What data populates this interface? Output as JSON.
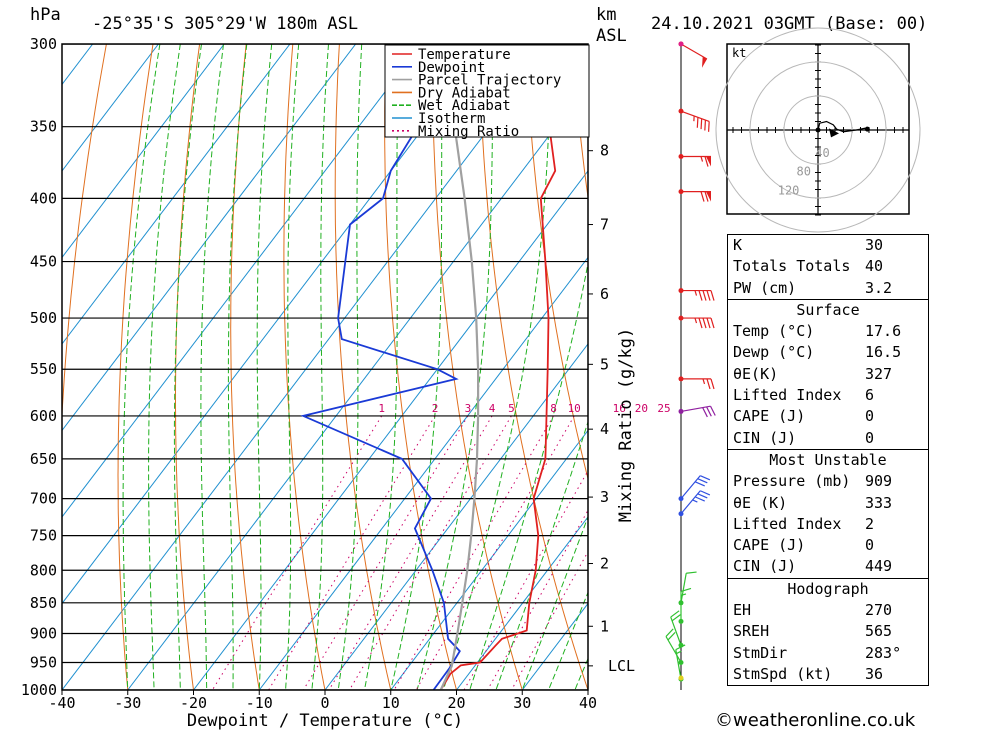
{
  "header": {
    "pressure_unit": "hPa",
    "location": "-25°35'S 305°29'W 180m ASL",
    "km_label": "km",
    "asl_label": "ASL",
    "datetime": "24.10.2021 03GMT (Base: 00)",
    "x_axis_label": "Dewpoint / Temperature (°C)",
    "mixing_axis_label": "Mixing Ratio (g/kg)",
    "lcl_label": "LCL",
    "hodograph_unit": "kt",
    "footer": "©weatheronline.co.uk"
  },
  "legend": [
    {
      "label": "Temperature",
      "color": "#e02020"
    },
    {
      "label": "Dewpoint",
      "color": "#1a3ad6"
    },
    {
      "label": "Parcel Trajectory",
      "color": "#a0a0a0"
    },
    {
      "label": "Dry Adiabat",
      "color": "#e07020"
    },
    {
      "label": "Wet Adiabat",
      "color": "#20b020"
    },
    {
      "label": "Isotherm",
      "color": "#2090d0"
    },
    {
      "label": "Mixing Ratio",
      "color": "#cc0066"
    }
  ],
  "chart_data": {
    "type": "line",
    "title": "-25°35'S 305°29'W 180m ASL",
    "xlabel": "Dewpoint / Temperature (°C)",
    "ylabel": "hPa",
    "x_ticks": [
      -40,
      -30,
      -20,
      -10,
      0,
      10,
      20,
      30,
      40
    ],
    "xlim": [
      -40,
      40
    ],
    "pressure_levels": [
      300,
      350,
      400,
      450,
      500,
      550,
      600,
      650,
      700,
      750,
      800,
      850,
      900,
      950,
      1000
    ],
    "ylim": [
      1000,
      300
    ],
    "km_ticks": [
      {
        "label": "8",
        "pressure": 366
      },
      {
        "label": "7",
        "pressure": 420
      },
      {
        "label": "6",
        "pressure": 478
      },
      {
        "label": "5",
        "pressure": 545
      },
      {
        "label": "4",
        "pressure": 615
      },
      {
        "label": "3",
        "pressure": 698
      },
      {
        "label": "2",
        "pressure": 790
      },
      {
        "label": "1",
        "pressure": 888
      },
      {
        "label": "LCL",
        "pressure": 956
      }
    ],
    "mixing_ratio_labels": [
      "1",
      "2",
      "3",
      "4",
      "5",
      "8",
      "10",
      "16",
      "20",
      "25"
    ],
    "mixing_ratio_values": [
      1,
      2,
      3,
      4,
      5,
      8,
      10,
      16,
      20,
      25
    ],
    "series": [
      {
        "name": "Temperature",
        "points": [
          {
            "p": 1000,
            "t": 17.6
          },
          {
            "p": 970,
            "t": 17.2
          },
          {
            "p": 955,
            "t": 17.8
          },
          {
            "p": 950,
            "t": 20.4
          },
          {
            "p": 920,
            "t": 20.8
          },
          {
            "p": 909,
            "t": 21.0
          },
          {
            "p": 895,
            "t": 23.8
          },
          {
            "p": 850,
            "t": 21.0
          },
          {
            "p": 800,
            "t": 18.2
          },
          {
            "p": 750,
            "t": 14.6
          },
          {
            "p": 700,
            "t": 9.6
          },
          {
            "p": 650,
            "t": 6.8
          },
          {
            "p": 600,
            "t": 2.0
          },
          {
            "p": 550,
            "t": -3.2
          },
          {
            "p": 500,
            "t": -9.0
          },
          {
            "p": 450,
            "t": -16.0
          },
          {
            "p": 400,
            "t": -24.0
          },
          {
            "p": 380,
            "t": -25.0
          },
          {
            "p": 350,
            "t": -31.0
          },
          {
            "p": 300,
            "t": -40.0
          }
        ]
      },
      {
        "name": "Dewpoint",
        "points": [
          {
            "p": 1000,
            "t": 16.5
          },
          {
            "p": 960,
            "t": 16.4
          },
          {
            "p": 930,
            "t": 16.0
          },
          {
            "p": 909,
            "t": 12.8
          },
          {
            "p": 850,
            "t": 8.0
          },
          {
            "p": 800,
            "t": 2.5
          },
          {
            "p": 740,
            "t": -5.0
          },
          {
            "p": 700,
            "t": -6.0
          },
          {
            "p": 650,
            "t": -15.0
          },
          {
            "p": 600,
            "t": -35.0
          },
          {
            "p": 560,
            "t": -16.0
          },
          {
            "p": 550,
            "t": -20.0
          },
          {
            "p": 520,
            "t": -38.0
          },
          {
            "p": 500,
            "t": -41.0
          },
          {
            "p": 420,
            "t": -50.0
          },
          {
            "p": 400,
            "t": -48.0
          },
          {
            "p": 380,
            "t": -50.0
          },
          {
            "p": 350,
            "t": -51.0
          },
          {
            "p": 300,
            "t": -57.0
          }
        ]
      },
      {
        "name": "Parcel Trajectory",
        "points": [
          {
            "p": 1000,
            "t": 17.6
          },
          {
            "p": 956,
            "t": 16.5
          },
          {
            "p": 900,
            "t": 13.6
          },
          {
            "p": 850,
            "t": 10.8
          },
          {
            "p": 800,
            "t": 7.8
          },
          {
            "p": 750,
            "t": 4.4
          },
          {
            "p": 700,
            "t": 0.6
          },
          {
            "p": 650,
            "t": -3.6
          },
          {
            "p": 600,
            "t": -8.4
          },
          {
            "p": 550,
            "t": -13.8
          },
          {
            "p": 500,
            "t": -20.0
          },
          {
            "p": 450,
            "t": -27.2
          },
          {
            "p": 400,
            "t": -35.6
          },
          {
            "p": 350,
            "t": -45.4
          },
          {
            "p": 300,
            "t": -57.0
          }
        ]
      }
    ],
    "wind_barbs": [
      {
        "p": 300,
        "speed_kt": 50,
        "dir_deg": 300
      },
      {
        "p": 340,
        "speed_kt": 45,
        "dir_deg": 290
      },
      {
        "p": 370,
        "speed_kt": 65,
        "dir_deg": 270
      },
      {
        "p": 395,
        "speed_kt": 70,
        "dir_deg": 270
      },
      {
        "p": 475,
        "speed_kt": 45,
        "dir_deg": 270
      },
      {
        "p": 500,
        "speed_kt": 45,
        "dir_deg": 270
      },
      {
        "p": 560,
        "speed_kt": 25,
        "dir_deg": 270
      },
      {
        "p": 595,
        "speed_kt": 30,
        "dir_deg": 260
      },
      {
        "p": 700,
        "speed_kt": 30,
        "dir_deg": 220
      },
      {
        "p": 720,
        "speed_kt": 35,
        "dir_deg": 220
      },
      {
        "p": 850,
        "speed_kt": 10,
        "dir_deg": 190
      },
      {
        "p": 880,
        "speed_kt": 15,
        "dir_deg": 180
      },
      {
        "p": 920,
        "speed_kt": 20,
        "dir_deg": 160
      },
      {
        "p": 950,
        "speed_kt": 20,
        "dir_deg": 150
      },
      {
        "p": 980,
        "speed_kt": 15,
        "dir_deg": 170
      }
    ],
    "hodograph": {
      "rings_kt": [
        40,
        80,
        120
      ],
      "ring_labels": [
        "40",
        "80",
        "120"
      ],
      "trace_kt": [
        {
          "u": 0,
          "v": 0
        },
        {
          "u": 2,
          "v": 8
        },
        {
          "u": 10,
          "v": 10
        },
        {
          "u": 18,
          "v": 6
        },
        {
          "u": 22,
          "v": 1
        },
        {
          "u": 30,
          "v": -2
        },
        {
          "u": 45,
          "v": 0
        },
        {
          "u": 55,
          "v": 2
        },
        {
          "u": 58,
          "v": 1
        }
      ],
      "storm_motion_kt": {
        "u": 20,
        "v": -4
      }
    }
  },
  "indices": {
    "k": {
      "label": "K",
      "value": "30"
    },
    "totals": {
      "label": "Totals Totals",
      "value": "40"
    },
    "pw": {
      "label": "PW (cm)",
      "value": "3.2"
    }
  },
  "surface": {
    "title": "Surface",
    "temp": {
      "label": "Temp (°C)",
      "value": "17.6"
    },
    "dewp": {
      "label": "Dewp (°C)",
      "value": "16.5"
    },
    "theta_e": {
      "label": "θE(K)",
      "value": "327"
    },
    "li": {
      "label": "Lifted Index",
      "value": "6"
    },
    "cape": {
      "label": "CAPE (J)",
      "value": "0"
    },
    "cin": {
      "label": "CIN (J)",
      "value": "0"
    }
  },
  "most_unstable": {
    "title": "Most Unstable",
    "pressure": {
      "label": "Pressure (mb)",
      "value": "909"
    },
    "theta_e": {
      "label": "θE (K)",
      "value": "333"
    },
    "li": {
      "label": "Lifted Index",
      "value": "2"
    },
    "cape": {
      "label": "CAPE (J)",
      "value": "0"
    },
    "cin": {
      "label": "CIN (J)",
      "value": "449"
    }
  },
  "hodograph_box": {
    "title": "Hodograph",
    "eh": {
      "label": "EH",
      "value": "270"
    },
    "sreh": {
      "label": "SREH",
      "value": "565"
    },
    "stmdir": {
      "label": "StmDir",
      "value": "283°"
    },
    "stmspd": {
      "label": "StmSpd (kt)",
      "value": "36"
    }
  }
}
